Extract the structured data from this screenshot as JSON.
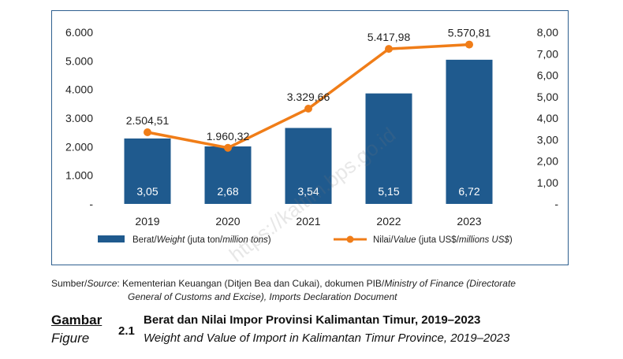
{
  "chart_data": {
    "type": "bar+line",
    "categories": [
      "2019",
      "2020",
      "2021",
      "2022",
      "2023"
    ],
    "series": [
      {
        "name": "Berat/Weight (juta ton/million tons)",
        "kind": "bar",
        "axis": "right",
        "values": [
          3.05,
          2.68,
          3.54,
          5.15,
          6.72
        ],
        "labels": [
          "3,05",
          "2,68",
          "3,54",
          "5,15",
          "6,72"
        ],
        "color": "#1f5a8e"
      },
      {
        "name": "Nilai/Value (juta US$/millions US$)",
        "kind": "line",
        "axis": "left",
        "values": [
          2504.51,
          1960.32,
          3329.66,
          5417.98,
          5570.81
        ],
        "labels": [
          "2.504,51",
          "1.960,32",
          "3.329,66",
          "5.417,98",
          "5.570,81"
        ],
        "color": "#f07d18"
      }
    ],
    "left_axis": {
      "ylim": [
        0,
        6000
      ],
      "ticks": [
        0,
        1000,
        2000,
        3000,
        4000,
        5000,
        6000
      ],
      "tick_labels": [
        "-",
        "1.000",
        "2.000",
        "3.000",
        "4.000",
        "5.000",
        "6.000"
      ]
    },
    "right_axis": {
      "ylim": [
        0,
        8
      ],
      "ticks": [
        0,
        1,
        2,
        3,
        4,
        5,
        6,
        7,
        8
      ],
      "tick_labels": [
        "-",
        "1,00",
        "2,00",
        "3,00",
        "4,00",
        "5,00",
        "6,00",
        "7,00",
        "8,00"
      ]
    },
    "legend": {
      "position": "bottom",
      "bar_label_plain": "Berat/",
      "bar_label_italic": "Weight",
      "bar_label_rest1": " (juta ton/",
      "bar_label_italic2": "million tons",
      "bar_label_rest2": ")",
      "line_label_plain": "Nilai/",
      "line_label_italic": "Value",
      "line_label_rest1": " (juta US$/",
      "line_label_italic2": "millions US$",
      "line_label_rest2": ")"
    },
    "grid": false
  },
  "source": {
    "label_plain": "Sumber/",
    "label_italic": "Source",
    "text_line1_plain": ": Kementerian Keuangan (Ditjen Bea dan Cukai), dokumen PIB/",
    "text_line1_italic": "Ministry of Finance (Directorate",
    "text_line2": "General of Customs and Excise), Imports Declaration Document"
  },
  "caption": {
    "gambar": "Gambar",
    "figure": "Figure",
    "number": "2.1",
    "title_id": "Berat dan Nilai Impor Provinsi Kalimantan Timur, 2019–2023",
    "title_en": "Weight and Value of Import in Kalimantan Timur Province, 2019–2023"
  },
  "watermark": "https://kaltim.bps.go.id"
}
